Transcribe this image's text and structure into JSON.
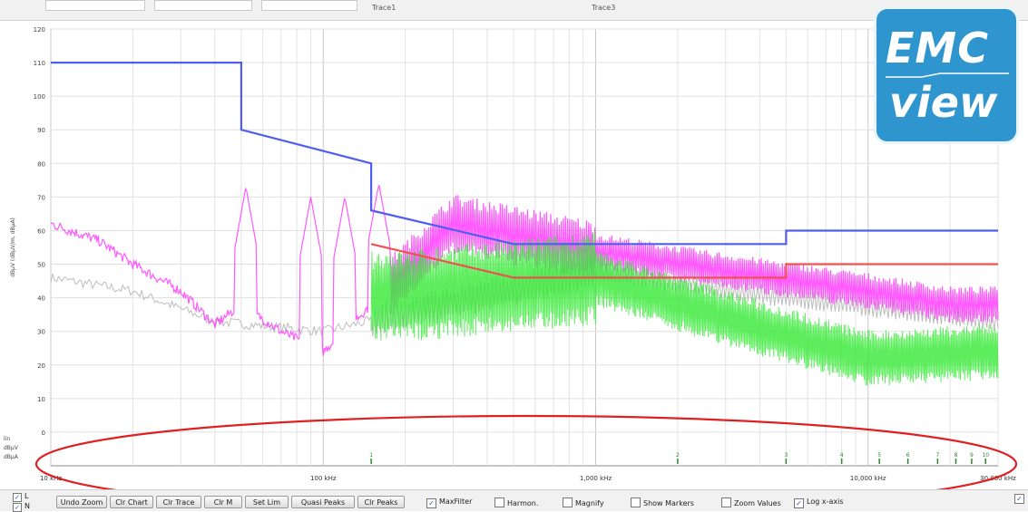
{
  "topbar": {
    "field1": "",
    "field2": "",
    "field3": "",
    "trace_label_1": "Trace1",
    "trace_label_2": "Trace3"
  },
  "logo": {
    "line1": "EMC",
    "line2": "view"
  },
  "side_labels": [
    "lin",
    "dBµV",
    "dBµA"
  ],
  "chart_data": {
    "type": "line",
    "title": "",
    "xlabel": "",
    "ylabel": "dBµV (dBµV/m, dBµA)",
    "xscale": "log",
    "xlim": [
      10,
      30000
    ],
    "ylim": [
      -10,
      120
    ],
    "yticks": [
      0,
      10,
      20,
      30,
      40,
      50,
      60,
      70,
      80,
      90,
      100,
      110,
      120
    ],
    "xticks": [
      {
        "v": 10,
        "label": "10 kHz"
      },
      {
        "v": 100,
        "label": "100 kHz"
      },
      {
        "v": 1000,
        "label": "1,000 kHz"
      },
      {
        "v": 10000,
        "label": "10,000 kHz"
      },
      {
        "v": 30000,
        "label": "30,000 kHz"
      }
    ],
    "grid": true,
    "series": [
      {
        "role": "limit-qp",
        "color": "#4f5df0",
        "x": [
          10,
          50,
          50,
          150,
          150,
          500,
          5000,
          5000,
          30000
        ],
        "y": [
          110,
          110,
          90,
          80,
          66,
          56,
          56,
          60,
          60
        ]
      },
      {
        "role": "limit-avg",
        "color": "#f0504f",
        "x": [
          150,
          500,
          5000,
          5000,
          30000
        ],
        "y": [
          56,
          46,
          46,
          50,
          50
        ]
      },
      {
        "role": "trace-magenta",
        "color": "#ff3cff",
        "base": [
          [
            10,
            62
          ],
          [
            15,
            57
          ],
          [
            20,
            50
          ],
          [
            30,
            42
          ],
          [
            40,
            32
          ],
          [
            50,
            38
          ],
          [
            70,
            30
          ],
          [
            100,
            24
          ],
          [
            150,
            38
          ],
          [
            300,
            62
          ],
          [
            1000,
            54
          ],
          [
            3000,
            48
          ],
          [
            10000,
            42
          ],
          [
            20000,
            38
          ],
          [
            30000,
            38
          ]
        ],
        "peaks": [
          [
            52,
            73
          ],
          [
            90,
            70
          ],
          [
            120,
            70
          ],
          [
            160,
            74
          ]
        ]
      },
      {
        "role": "trace-green",
        "color": "#35e935",
        "base": [
          [
            150,
            40
          ],
          [
            300,
            42
          ],
          [
            1000,
            46
          ],
          [
            3000,
            34
          ],
          [
            10000,
            22
          ],
          [
            30000,
            24
          ]
        ]
      },
      {
        "role": "trace-grey",
        "color": "#b6b6b6",
        "base": [
          [
            10,
            46
          ],
          [
            20,
            42
          ],
          [
            40,
            33
          ],
          [
            100,
            30
          ],
          [
            1000,
            48
          ],
          [
            5000,
            40
          ],
          [
            30000,
            33
          ]
        ]
      }
    ],
    "markers": [
      {
        "x": 150,
        "label": "1"
      },
      {
        "x": 2000,
        "label": "2"
      },
      {
        "x": 5000,
        "label": "3"
      },
      {
        "x": 8000,
        "label": "4"
      },
      {
        "x": 11000,
        "label": "5"
      },
      {
        "x": 14000,
        "label": "6"
      },
      {
        "x": 18000,
        "label": "7"
      },
      {
        "x": 21000,
        "label": "8"
      },
      {
        "x": 24000,
        "label": "9"
      },
      {
        "x": 27000,
        "label": "10"
      }
    ],
    "annotation": {
      "shape": "ellipse",
      "color": "#e02020"
    }
  },
  "left_checks": [
    {
      "label": "L",
      "checked": true
    },
    {
      "label": "N",
      "checked": true
    }
  ],
  "buttons": [
    "Undo Zoom",
    "Clr Chart",
    "Clr Trace",
    "Clr M",
    "Set Lim",
    "Quasi Peaks",
    "Clr Peaks"
  ],
  "checks": [
    {
      "label": "MaxFilter",
      "checked": true
    },
    {
      "label": "Harmon.",
      "checked": false
    },
    {
      "label": "Magnify",
      "checked": false
    },
    {
      "label": "Show Markers",
      "checked": false
    },
    {
      "label": "Zoom Values",
      "checked": false
    },
    {
      "label": "Log x-axis",
      "checked": true
    }
  ],
  "right_check": {
    "checked": true
  }
}
